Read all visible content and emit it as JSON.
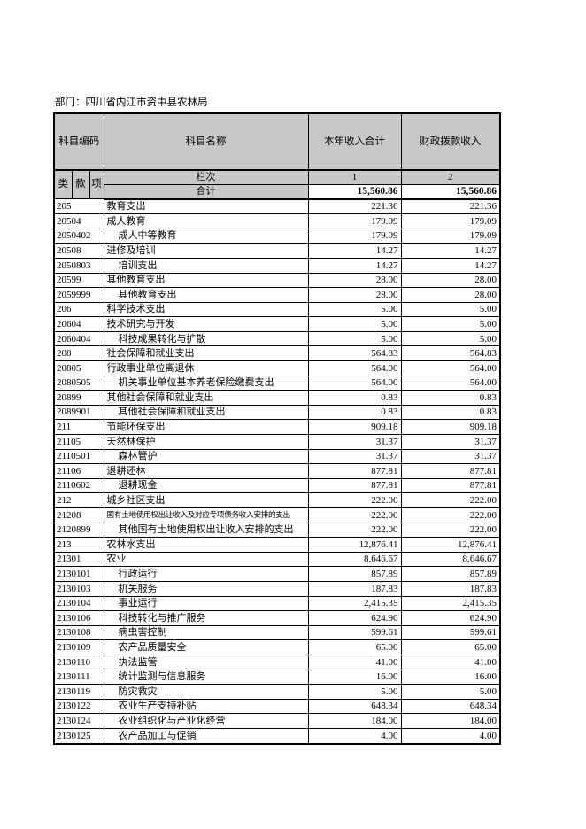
{
  "page": {
    "department_line": "部门：四川省内江市资中县农林局"
  },
  "colors": {
    "header_bg": "#c8c8c8",
    "border": "#000000",
    "page_bg": "#ffffff"
  },
  "table": {
    "header": {
      "col_code": "科目编码",
      "col_name": "科目名称",
      "col_total": "本年收入合计",
      "col_fiscal": "财政拨款收入",
      "sub_class": "类",
      "sub_section": "款",
      "sub_item": "项",
      "lanci_label": "栏次",
      "lanci_col1": "1",
      "lanci_col2": "2",
      "heji_label": "合计",
      "heji_v1": "15,560.86",
      "heji_v2": "15,560.86"
    },
    "rows": [
      {
        "code": "205",
        "name": "教育支出",
        "indent": false,
        "small": false,
        "v1": "221.36",
        "v2": "221.36"
      },
      {
        "code": "20504",
        "name": "成人教育",
        "indent": false,
        "small": false,
        "v1": "179.09",
        "v2": "179.09"
      },
      {
        "code": "2050402",
        "name": "成人中等教育",
        "indent": true,
        "small": false,
        "v1": "179.09",
        "v2": "179.09"
      },
      {
        "code": "20508",
        "name": "进修及培训",
        "indent": false,
        "small": false,
        "v1": "14.27",
        "v2": "14.27"
      },
      {
        "code": "2050803",
        "name": "培训支出",
        "indent": true,
        "small": false,
        "v1": "14.27",
        "v2": "14.27"
      },
      {
        "code": "20599",
        "name": "其他教育支出",
        "indent": false,
        "small": false,
        "v1": "28.00",
        "v2": "28.00"
      },
      {
        "code": "2059999",
        "name": "其他教育支出",
        "indent": true,
        "small": false,
        "v1": "28.00",
        "v2": "28.00"
      },
      {
        "code": "206",
        "name": "科学技术支出",
        "indent": false,
        "small": false,
        "v1": "5.00",
        "v2": "5.00"
      },
      {
        "code": "20604",
        "name": "技术研究与开发",
        "indent": false,
        "small": false,
        "v1": "5.00",
        "v2": "5.00"
      },
      {
        "code": "2060404",
        "name": "科技成果转化与扩散",
        "indent": true,
        "small": false,
        "v1": "5.00",
        "v2": "5.00"
      },
      {
        "code": "208",
        "name": "社会保障和就业支出",
        "indent": false,
        "small": false,
        "v1": "564.83",
        "v2": "564.83"
      },
      {
        "code": "20805",
        "name": "行政事业单位离退休",
        "indent": false,
        "small": false,
        "v1": "564.00",
        "v2": "564.00"
      },
      {
        "code": "2080505",
        "name": "机关事业单位基本养老保险缴费支出",
        "indent": true,
        "small": false,
        "v1": "564.00",
        "v2": "564.00"
      },
      {
        "code": "20899",
        "name": "其他社会保障和就业支出",
        "indent": false,
        "small": false,
        "v1": "0.83",
        "v2": "0.83"
      },
      {
        "code": "2089901",
        "name": "其他社会保障和就业支出",
        "indent": true,
        "small": false,
        "v1": "0.83",
        "v2": "0.83"
      },
      {
        "code": "211",
        "name": "节能环保支出",
        "indent": false,
        "small": false,
        "v1": "909.18",
        "v2": "909.18"
      },
      {
        "code": "21105",
        "name": "天然林保护",
        "indent": false,
        "small": false,
        "v1": "31.37",
        "v2": "31.37"
      },
      {
        "code": "2110501",
        "name": "森林管护",
        "indent": true,
        "small": false,
        "v1": "31.37",
        "v2": "31.37"
      },
      {
        "code": "21106",
        "name": "退耕还林",
        "indent": false,
        "small": false,
        "v1": "877.81",
        "v2": "877.81"
      },
      {
        "code": "2110602",
        "name": "退耕现金",
        "indent": true,
        "small": false,
        "v1": "877.81",
        "v2": "877.81"
      },
      {
        "code": "212",
        "name": "城乡社区支出",
        "indent": false,
        "small": false,
        "v1": "222.00",
        "v2": "222.00"
      },
      {
        "code": "21208",
        "name": "国有土地使用权出让收入及对应专项债务收入安排的支出",
        "indent": false,
        "small": true,
        "v1": "222.00",
        "v2": "222.00"
      },
      {
        "code": "2120899",
        "name": "其他国有土地使用权出让收入安排的支出",
        "indent": true,
        "small": false,
        "v1": "222.00",
        "v2": "222.00"
      },
      {
        "code": "213",
        "name": "农林水支出",
        "indent": false,
        "small": false,
        "v1": "12,876.41",
        "v2": "12,876.41"
      },
      {
        "code": "21301",
        "name": "农业",
        "indent": false,
        "small": false,
        "v1": "8,646.67",
        "v2": "8,646.67"
      },
      {
        "code": "2130101",
        "name": "行政运行",
        "indent": true,
        "small": false,
        "v1": "857.89",
        "v2": "857.89"
      },
      {
        "code": "2130103",
        "name": "机关服务",
        "indent": true,
        "small": false,
        "v1": "187.83",
        "v2": "187.83"
      },
      {
        "code": "2130104",
        "name": "事业运行",
        "indent": true,
        "small": false,
        "v1": "2,415.35",
        "v2": "2,415.35"
      },
      {
        "code": "2130106",
        "name": "科技转化与推广服务",
        "indent": true,
        "small": false,
        "v1": "624.90",
        "v2": "624.90"
      },
      {
        "code": "2130108",
        "name": "病虫害控制",
        "indent": true,
        "small": false,
        "v1": "599.61",
        "v2": "599.61"
      },
      {
        "code": "2130109",
        "name": "农产品质量安全",
        "indent": true,
        "small": false,
        "v1": "65.00",
        "v2": "65.00"
      },
      {
        "code": "2130110",
        "name": "执法监管",
        "indent": true,
        "small": false,
        "v1": "41.00",
        "v2": "41.00"
      },
      {
        "code": "2130111",
        "name": "统计监测与信息服务",
        "indent": true,
        "small": false,
        "v1": "16.00",
        "v2": "16.00"
      },
      {
        "code": "2130119",
        "name": "防灾救灾",
        "indent": true,
        "small": false,
        "v1": "5.00",
        "v2": "5.00"
      },
      {
        "code": "2130122",
        "name": "农业生产支持补贴",
        "indent": true,
        "small": false,
        "v1": "648.34",
        "v2": "648.34"
      },
      {
        "code": "2130124",
        "name": "农业组织化与产业化经营",
        "indent": true,
        "small": false,
        "v1": "184.00",
        "v2": "184.00"
      },
      {
        "code": "2130125",
        "name": "农产品加工与促销",
        "indent": true,
        "small": false,
        "v1": "4.00",
        "v2": "4.00"
      }
    ]
  }
}
